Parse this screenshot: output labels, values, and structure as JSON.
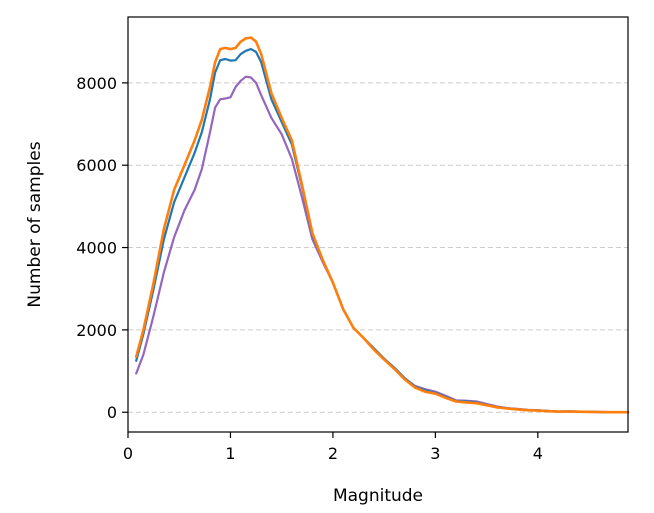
{
  "chart_data": {
    "type": "line",
    "title": "",
    "xlabel": "Magnitude",
    "ylabel": "Number of samples",
    "xlim": [
      0,
      4.88
    ],
    "ylim": [
      -480,
      9600
    ],
    "xticks": [
      0,
      1,
      2,
      3,
      4
    ],
    "xtick_labels": [
      "0",
      "1",
      "2",
      "3",
      "4"
    ],
    "yticks": [
      0,
      2000,
      4000,
      6000,
      8000
    ],
    "ytick_labels": [
      "0",
      "2000",
      "4000",
      "6000",
      "8000"
    ],
    "grid": "horizontal-dashed",
    "legend": "none",
    "series": [
      {
        "color": "#9467bd",
        "x": [
          0.08,
          0.15,
          0.25,
          0.35,
          0.45,
          0.55,
          0.65,
          0.72,
          0.8,
          0.85,
          0.9,
          0.95,
          1.0,
          1.05,
          1.1,
          1.15,
          1.2,
          1.25,
          1.3,
          1.4,
          1.5,
          1.6,
          1.7,
          1.8,
          1.9,
          2.0,
          2.1,
          2.2,
          2.3,
          2.4,
          2.5,
          2.6,
          2.7,
          2.8,
          2.9,
          3.0,
          3.1,
          3.2,
          3.3,
          3.4,
          3.5,
          3.6,
          3.7,
          3.8,
          3.9,
          4.0,
          4.1,
          4.2,
          4.3,
          4.4,
          4.5,
          4.6,
          4.7,
          4.88
        ],
        "y": [
          940,
          1400,
          2350,
          3400,
          4250,
          4900,
          5400,
          5900,
          6800,
          7400,
          7600,
          7620,
          7650,
          7900,
          8050,
          8150,
          8130,
          8000,
          7700,
          7150,
          6750,
          6150,
          5200,
          4200,
          3650,
          3150,
          2500,
          2050,
          1800,
          1550,
          1300,
          1080,
          830,
          640,
          560,
          500,
          400,
          290,
          280,
          260,
          200,
          140,
          100,
          80,
          60,
          50,
          30,
          15,
          20,
          15,
          10,
          5,
          3,
          2
        ]
      },
      {
        "color": "#1f77b4",
        "x": [
          0.08,
          0.15,
          0.25,
          0.35,
          0.45,
          0.55,
          0.65,
          0.72,
          0.8,
          0.85,
          0.9,
          0.95,
          1.0,
          1.05,
          1.1,
          1.15,
          1.2,
          1.25,
          1.3,
          1.4,
          1.5,
          1.6,
          1.7,
          1.8,
          1.9,
          2.0,
          2.1,
          2.2,
          2.3,
          2.4,
          2.5,
          2.6,
          2.7,
          2.8,
          2.9,
          3.0,
          3.1,
          3.2,
          3.3,
          3.4,
          3.5,
          3.6,
          3.7,
          3.8,
          3.9,
          4.0,
          4.1,
          4.2,
          4.3,
          4.4,
          4.5,
          4.6,
          4.7,
          4.88
        ],
        "y": [
          1250,
          1900,
          3000,
          4200,
          5100,
          5700,
          6300,
          6800,
          7600,
          8250,
          8550,
          8580,
          8540,
          8550,
          8700,
          8780,
          8820,
          8750,
          8500,
          7600,
          7050,
          6500,
          5450,
          4300,
          3700,
          3150,
          2500,
          2050,
          1800,
          1550,
          1300,
          1080,
          830,
          620,
          530,
          470,
          370,
          270,
          260,
          240,
          180,
          130,
          95,
          75,
          55,
          45,
          30,
          15,
          20,
          15,
          10,
          5,
          3,
          2
        ]
      },
      {
        "color": "#ff7f0e",
        "x": [
          0.08,
          0.15,
          0.25,
          0.35,
          0.45,
          0.55,
          0.65,
          0.72,
          0.8,
          0.85,
          0.9,
          0.95,
          1.0,
          1.05,
          1.1,
          1.15,
          1.2,
          1.25,
          1.3,
          1.4,
          1.5,
          1.6,
          1.7,
          1.8,
          1.9,
          2.0,
          2.1,
          2.2,
          2.3,
          2.4,
          2.5,
          2.6,
          2.7,
          2.8,
          2.9,
          3.0,
          3.1,
          3.2,
          3.3,
          3.4,
          3.5,
          3.6,
          3.7,
          3.8,
          3.9,
          4.0,
          4.1,
          4.2,
          4.3,
          4.4,
          4.5,
          4.6,
          4.7,
          4.88
        ],
        "y": [
          1350,
          2000,
          3150,
          4450,
          5400,
          6000,
          6600,
          7100,
          7900,
          8500,
          8820,
          8850,
          8820,
          8850,
          9000,
          9080,
          9100,
          9000,
          8700,
          7750,
          7150,
          6600,
          5500,
          4350,
          3700,
          3150,
          2500,
          2050,
          1800,
          1520,
          1280,
          1050,
          800,
          600,
          500,
          450,
          350,
          260,
          240,
          220,
          170,
          120,
          90,
          70,
          50,
          40,
          25,
          15,
          18,
          12,
          8,
          4,
          2,
          1
        ]
      }
    ]
  }
}
